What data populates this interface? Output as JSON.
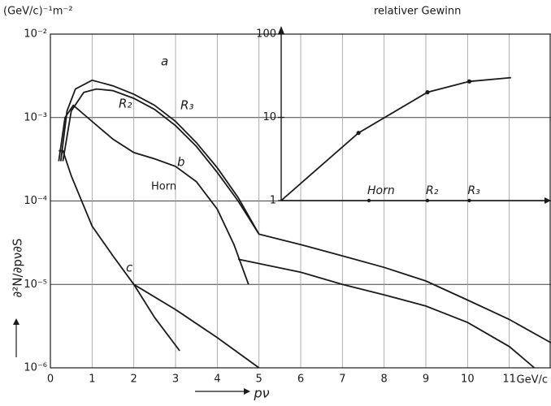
{
  "chart_data": [
    {
      "type": "line",
      "y_unit": "(GeV/c)⁻¹m⁻²",
      "ylabel": "∂²N/∂pν∂S",
      "xlabel": "pν",
      "x_unit": "GeV/c",
      "xlim": [
        0,
        12
      ],
      "xticks": [
        0,
        1,
        2,
        3,
        4,
        5,
        6,
        7,
        8,
        9,
        10,
        11
      ],
      "ylim": [
        1e-06,
        0.01
      ],
      "yticks": [
        {
          "value": 1e-06,
          "label": "10⁻⁶"
        },
        {
          "value": 1e-05,
          "label": "10⁻⁵"
        },
        {
          "value": 0.0001,
          "label": "10⁻⁴"
        },
        {
          "value": 0.001,
          "label": "10⁻³"
        },
        {
          "value": 0.01,
          "label": "10⁻²"
        }
      ],
      "log_y": true,
      "grid": true,
      "color": "#1a1a1a",
      "annotations": [
        "a",
        "R₂",
        "R₃",
        "b",
        "Horn",
        "c"
      ],
      "series": [
        {
          "x": [
            0.25,
            0.4,
            0.6,
            1.0,
            1.5,
            2,
            2.5,
            3,
            3.5,
            4,
            4.5,
            5,
            6,
            7,
            8,
            9,
            10,
            11,
            12
          ],
          "values": [
            0.0003,
            0.0012,
            0.0022,
            0.0028,
            0.0024,
            0.0019,
            0.0014,
            0.0009,
            0.0005,
            0.00025,
            0.00011,
            4e-05,
            3e-05,
            2.2e-05,
            1.6e-05,
            1.1e-05,
            6.5e-06,
            3.8e-06,
            2e-06
          ]
        },
        {
          "x": [
            0.3,
            0.5,
            0.8,
            1.1,
            1.5,
            2,
            2.5,
            3,
            3.5,
            4,
            4.5,
            5
          ],
          "values": [
            0.0003,
            0.0012,
            0.002,
            0.0022,
            0.0021,
            0.0017,
            0.00125,
            0.0008,
            0.00045,
            0.00022,
            0.0001,
            4e-05
          ]
        },
        {
          "x": [
            0.2,
            0.35,
            0.55,
            1,
            1.5,
            2,
            2.5,
            3,
            3.5,
            4,
            4.4,
            4.75
          ],
          "values": [
            0.0003,
            0.001,
            0.0014,
            0.0009,
            0.00055,
            0.00038,
            0.00032,
            0.00026,
            0.00017,
            8e-05,
            3e-05,
            1e-05
          ]
        },
        {
          "x": [
            4.5,
            6,
            7,
            8,
            9,
            10,
            11,
            11.6
          ],
          "values": [
            2e-05,
            1.4e-05,
            1e-05,
            7.5e-06,
            5.5e-06,
            3.5e-06,
            1.8e-06,
            1e-06
          ]
        },
        {
          "x": [
            0.2,
            0.3,
            0.5,
            1,
            1.5,
            2,
            2.5,
            3.1
          ],
          "values": [
            0.0004,
            0.0004,
            0.0002,
            5e-05,
            2.2e-05,
            1e-05,
            4e-06,
            1.6e-06
          ]
        },
        {
          "x": [
            2,
            3,
            4,
            5
          ],
          "values": [
            1e-05,
            5e-06,
            2.3e-06,
            1e-06
          ]
        }
      ]
    },
    {
      "type": "line",
      "title": "relativer Gewinn",
      "xlim": [
        5.5,
        11.8
      ],
      "xticks": [
        {
          "value": 7.6,
          "label": "Horn"
        },
        {
          "value": 9,
          "label": "R₂"
        },
        {
          "value": 10,
          "label": "R₃"
        }
      ],
      "ylim": [
        1,
        100
      ],
      "yticks": [
        1,
        10,
        100
      ],
      "log_y": true,
      "color": "#1a1a1a",
      "x": [
        5.5,
        7.35,
        9,
        10,
        11
      ],
      "values": [
        1,
        6.5,
        20,
        27,
        30
      ]
    }
  ]
}
